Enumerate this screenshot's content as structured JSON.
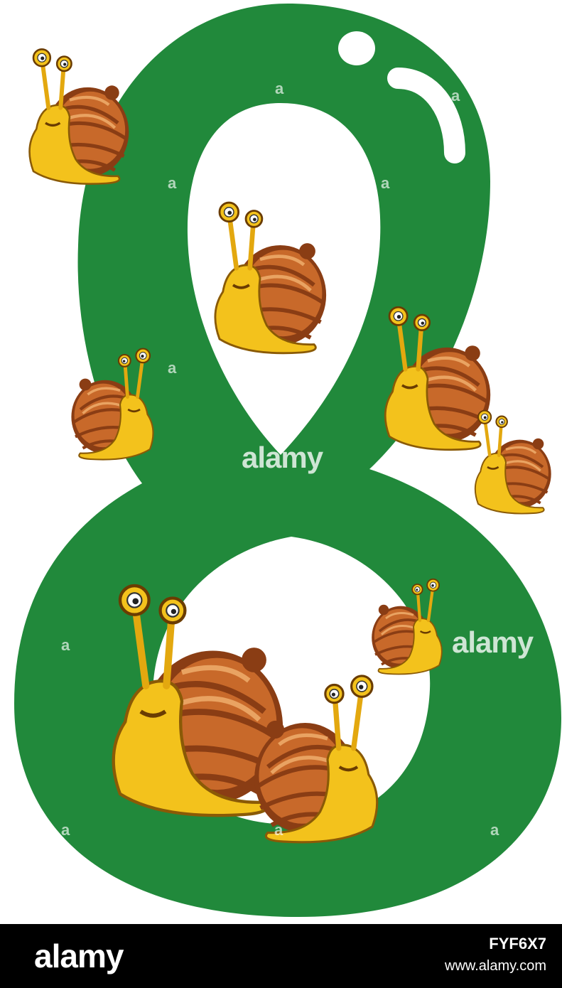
{
  "image": {
    "subject": "number-8-with-snails",
    "colors": {
      "digit_green": "#21893b",
      "shell_dark": "#8a3d14",
      "shell_mid": "#c8692a",
      "shell_light": "#e9a362",
      "body_yellow": "#f3c21c",
      "body_dark": "#c8900c",
      "background": "#ffffff",
      "footer": "#000000"
    }
  },
  "watermarks": {
    "center": "alamy",
    "right": "alamy",
    "tile_letter": "a"
  },
  "footer": {
    "logo": "alamy",
    "image_id": "FYF6X7",
    "url": "www.alamy.com"
  }
}
